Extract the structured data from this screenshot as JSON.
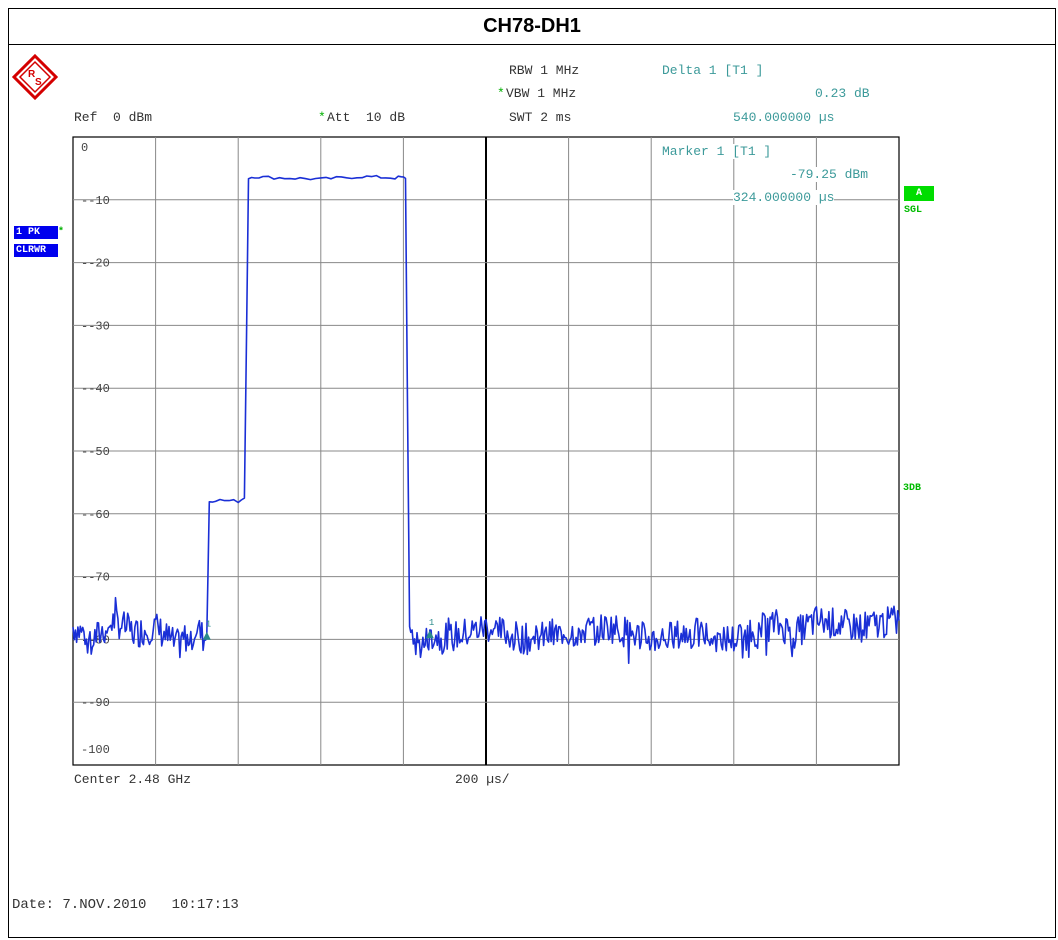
{
  "title": "CH78-DH1",
  "header": {
    "ref": "Ref  0 dBm",
    "att_star": "*",
    "att": "Att  10 dB",
    "rbw": "RBW 1 MHz",
    "vbw_star": "*",
    "vbw": "VBW 1 MHz",
    "swt": "SWT 2 ms",
    "delta_title": "Delta 1 [T1 ]",
    "delta_value": "0.23 dB",
    "delta_time": "540.000000 µs"
  },
  "marker": {
    "title": "Marker 1 [T1 ]",
    "value": "-79.25 dBm",
    "time": "324.000000 µs"
  },
  "badges": {
    "trace_mode": "1 PK",
    "trace_mode_star": "*",
    "trace_clear": "CLRWR",
    "a_badge": "A",
    "sgl": "SGL",
    "threedb": "3DB"
  },
  "footer": {
    "center": "Center 2.48 GHz",
    "div": "200 µs/",
    "date": "Date: 7.NOV.2010   10:17:13"
  },
  "colors": {
    "trace": "#1a2fd6",
    "grid": "#888888",
    "marker": "#2a8a8a",
    "accent_green": "#00dd00",
    "badge_blue": "#0000ee"
  },
  "chart_data": {
    "type": "line",
    "title": "CH78-DH1",
    "xlabel": "200 µs/",
    "ylabel": "",
    "xlim": [
      0,
      2000
    ],
    "ylim": [
      -100,
      0
    ],
    "grid": true,
    "y_ticks": [
      "0",
      "-10",
      "-20",
      "-30",
      "-40",
      "-50",
      "-60",
      "-70",
      "-80",
      "-90",
      "-100"
    ],
    "series": [
      {
        "values_desc": "",
        "x": [
          0,
          50,
          100,
          150,
          200,
          250,
          300,
          318,
          324,
          330,
          345,
          400,
          415,
          425,
          440,
          460,
          500,
          600,
          700,
          780,
          795,
          805,
          815,
          830,
          850,
          864,
          900,
          1000,
          1100,
          1200,
          1300,
          1400,
          1500,
          1600,
          1700,
          1750,
          1800,
          1900,
          2000
        ],
        "y": [
          -78,
          -80,
          -77,
          -79,
          -78,
          -81,
          -78,
          -80,
          -79.25,
          -58,
          -57.8,
          -58,
          -57.5,
          -6.5,
          -6.3,
          -6.4,
          -6.5,
          -6.7,
          -6.3,
          -6.5,
          -6.4,
          -6.6,
          -79,
          -80.5,
          -81,
          -79.02,
          -80,
          -78,
          -80,
          -79,
          -78,
          -80,
          -79,
          -80,
          -77.5,
          -79,
          -77,
          -78,
          -77
        ]
      }
    ],
    "markers": [
      {
        "name": "1",
        "x": 324,
        "y": -79.25
      },
      {
        "name": "1",
        "x": 864,
        "y": -79.02
      }
    ]
  }
}
